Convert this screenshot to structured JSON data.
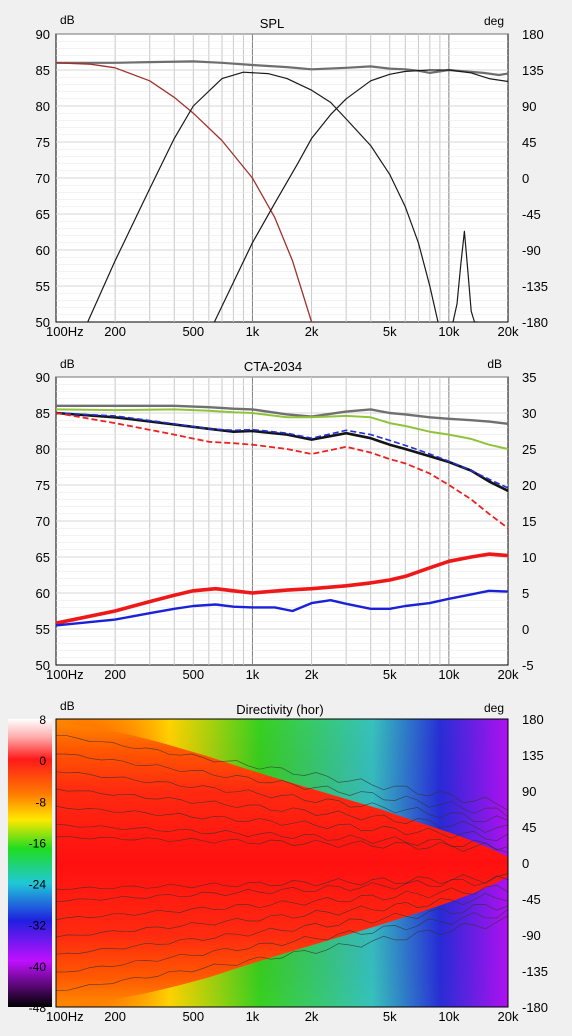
{
  "x_ticks": [
    "100Hz",
    "200",
    "500",
    "1k",
    "2k",
    "5k",
    "10k",
    "20k"
  ],
  "colors": {
    "plot_bg": "#ffffff",
    "grid": "#c8c8c8",
    "grid_major": "#808080"
  },
  "chart_data": [
    {
      "type": "line",
      "title": "SPL",
      "ylabel": "dB",
      "y2label": "deg",
      "xlim": [
        100,
        20000
      ],
      "x_scale": "log",
      "ylim": [
        50,
        90
      ],
      "y2lim": [
        -180,
        180
      ],
      "grid": true,
      "y_ticks": [
        "90",
        "85",
        "80",
        "75",
        "70",
        "65",
        "60",
        "55",
        "50"
      ],
      "y2_ticks": [
        "180",
        "135",
        "90",
        "45",
        "0",
        "-45",
        "-90",
        "-135",
        "-180"
      ],
      "series": [
        {
          "axis": "left",
          "color": "#6e6e6e",
          "width": 2.2,
          "x": [
            100,
            150,
            200,
            300,
            500,
            700,
            1000,
            1500,
            2000,
            3000,
            4000,
            5000,
            6000,
            7000,
            8000,
            10000,
            12000,
            15000,
            18000,
            20000
          ],
          "y": [
            86,
            86,
            86,
            86.1,
            86.2,
            86,
            85.7,
            85.4,
            85.1,
            85.3,
            85.5,
            85.2,
            85.1,
            84.9,
            84.6,
            85,
            84.8,
            84.6,
            84.3,
            84.5
          ]
        },
        {
          "axis": "left",
          "color": "#a0322d",
          "width": 1.3,
          "x": [
            100,
            150,
            200,
            300,
            400,
            500,
            700,
            1000,
            1300,
            1600,
            2000
          ],
          "y": [
            86,
            85.8,
            85.3,
            83.5,
            81.2,
            79,
            75.2,
            70,
            64.5,
            58.5,
            50
          ]
        },
        {
          "axis": "left",
          "color": "#1a1a1a",
          "width": 1.2,
          "x": [
            145,
            200,
            300,
            400,
            500,
            700,
            900,
            1200,
            1500,
            2000,
            2500,
            3000,
            4000,
            5000,
            6000,
            7000,
            8000,
            8800
          ],
          "y": [
            50,
            58.5,
            68.5,
            75.5,
            80,
            83.8,
            84.7,
            84.5,
            83.8,
            82.2,
            80.5,
            78.2,
            74.5,
            70.5,
            66,
            61,
            55,
            50
          ]
        },
        {
          "axis": "left",
          "color": "#1a1a1a",
          "width": 1.2,
          "x": [
            640,
            800,
            1000,
            1300,
            1700,
            2000,
            2500,
            3000,
            4000,
            5000,
            6000,
            8000,
            10000,
            13000,
            16000,
            20000
          ],
          "y": [
            50,
            55.5,
            61,
            66.5,
            72,
            75.5,
            78.8,
            81,
            83.5,
            84.4,
            84.8,
            85,
            85,
            84.6,
            83.8,
            83.4
          ]
        },
        {
          "axis": "left",
          "color": "#1a1a1a",
          "width": 1.2,
          "x": [
            10500,
            11000,
            11500,
            12000,
            12500,
            13000,
            13500,
            14000
          ],
          "y": [
            50,
            52.5,
            58,
            62.6,
            57,
            51.5,
            50,
            50
          ]
        }
      ]
    },
    {
      "type": "line",
      "title": "CTA-2034",
      "ylabel": "dB",
      "y2label": "dB",
      "xlim": [
        100,
        20000
      ],
      "x_scale": "log",
      "ylim": [
        50,
        90
      ],
      "y2lim": [
        -5,
        35
      ],
      "grid": true,
      "y_ticks": [
        "90",
        "85",
        "80",
        "75",
        "70",
        "65",
        "60",
        "55",
        "50"
      ],
      "y2_ticks": [
        "35",
        "30",
        "25",
        "20",
        "15",
        "10",
        "5",
        "0",
        "-5"
      ],
      "series": [
        {
          "axis": "left",
          "color": "#707070",
          "width": 2.4,
          "x": [
            100,
            200,
            400,
            600,
            800,
            1000,
            1500,
            2000,
            3000,
            4000,
            5000,
            6000,
            8000,
            10000,
            13000,
            16000,
            20000
          ],
          "y": [
            86,
            86,
            86,
            85.8,
            85.6,
            85.5,
            84.8,
            84.5,
            85.2,
            85.5,
            85,
            84.8,
            84.4,
            84.2,
            84,
            83.8,
            83.5
          ]
        },
        {
          "axis": "left",
          "color": "#8fc43a",
          "width": 2,
          "x": [
            100,
            200,
            400,
            600,
            800,
            1000,
            1500,
            2000,
            3000,
            4000,
            5000,
            6000,
            8000,
            10000,
            13000,
            16000,
            20000
          ],
          "y": [
            85.5,
            85.4,
            85.5,
            85.3,
            85.1,
            85,
            84.4,
            84.4,
            84.6,
            84.4,
            83.6,
            83.2,
            82.4,
            82,
            81.4,
            80.6,
            80
          ]
        },
        {
          "axis": "left",
          "color": "#141414",
          "width": 2.6,
          "x": [
            100,
            200,
            400,
            600,
            800,
            1000,
            1500,
            2000,
            3000,
            4000,
            5000,
            6000,
            8000,
            10000,
            13000,
            16000,
            20000
          ],
          "y": [
            85,
            84.4,
            83.4,
            82.8,
            82.4,
            82.5,
            82,
            81.3,
            82.2,
            81.5,
            80.6,
            80,
            79,
            78.2,
            77,
            75.5,
            74.2
          ]
        },
        {
          "axis": "left",
          "color": "#2030d8",
          "width": 1.6,
          "dash": "6,3",
          "x": [
            100,
            200,
            400,
            600,
            800,
            1000,
            1500,
            2000,
            3000,
            4000,
            5000,
            6000,
            8000,
            10000,
            13000,
            16000,
            20000
          ],
          "y": [
            85,
            84.6,
            83.5,
            82.8,
            82.6,
            82.7,
            82.2,
            81.5,
            82.6,
            82,
            81.2,
            80.5,
            79.3,
            78.3,
            77,
            75.8,
            74.6
          ]
        },
        {
          "axis": "left",
          "color": "#ee2020",
          "width": 1.8,
          "dash": "6,3",
          "x": [
            100,
            200,
            400,
            600,
            800,
            1000,
            1500,
            2000,
            3000,
            4000,
            5000,
            6000,
            8000,
            10000,
            13000,
            16000,
            20000
          ],
          "y": [
            85,
            83.6,
            82,
            81,
            80.8,
            80.6,
            80,
            79.3,
            80.3,
            79.5,
            78.6,
            78,
            76.6,
            75,
            73,
            71,
            69
          ]
        },
        {
          "axis": "left",
          "color": "#ee1818",
          "width": 3.6,
          "x": [
            100,
            200,
            300,
            400,
            500,
            650,
            800,
            1000,
            1500,
            2000,
            3000,
            4000,
            5000,
            6000,
            8000,
            10000,
            13000,
            16000,
            20000
          ],
          "y": [
            55.8,
            57.5,
            58.8,
            59.7,
            60.3,
            60.6,
            60.3,
            60,
            60.4,
            60.6,
            61,
            61.4,
            61.8,
            62.3,
            63.5,
            64.4,
            65,
            65.4,
            65.2
          ]
        },
        {
          "axis": "left",
          "color": "#1a22d8",
          "width": 2.4,
          "x": [
            100,
            200,
            300,
            400,
            500,
            650,
            800,
            1000,
            1300,
            1600,
            2000,
            2500,
            3000,
            4000,
            5000,
            6000,
            8000,
            10000,
            13000,
            16000,
            20000
          ],
          "y": [
            55.5,
            56.3,
            57.2,
            57.8,
            58.2,
            58.4,
            58.1,
            58,
            58,
            57.5,
            58.6,
            59,
            58.5,
            57.8,
            57.8,
            58.2,
            58.6,
            59.2,
            59.8,
            60.3,
            60.2
          ]
        }
      ]
    },
    {
      "type": "heatmap",
      "title": "Directivity (hor)",
      "ylabel": "dB",
      "y2label": "deg",
      "xlim": [
        100,
        20000
      ],
      "x_scale": "log",
      "y2lim": [
        -180,
        180
      ],
      "colorbar_ticks": [
        "8",
        "0",
        "-8",
        "-16",
        "-24",
        "-32",
        "-40",
        "-48"
      ],
      "y2_ticks": [
        "180",
        "135",
        "90",
        "45",
        "0",
        "-45",
        "-90",
        "-135",
        "-180"
      ],
      "colorbar_range": [
        -48,
        8
      ],
      "colormap": [
        "#ffffff",
        "#ff2020",
        "#ff5500",
        "#ffe000",
        "#1fdc1f",
        "#1fd0d8",
        "#2020e0",
        "#c010ff",
        "#000000"
      ]
    }
  ]
}
